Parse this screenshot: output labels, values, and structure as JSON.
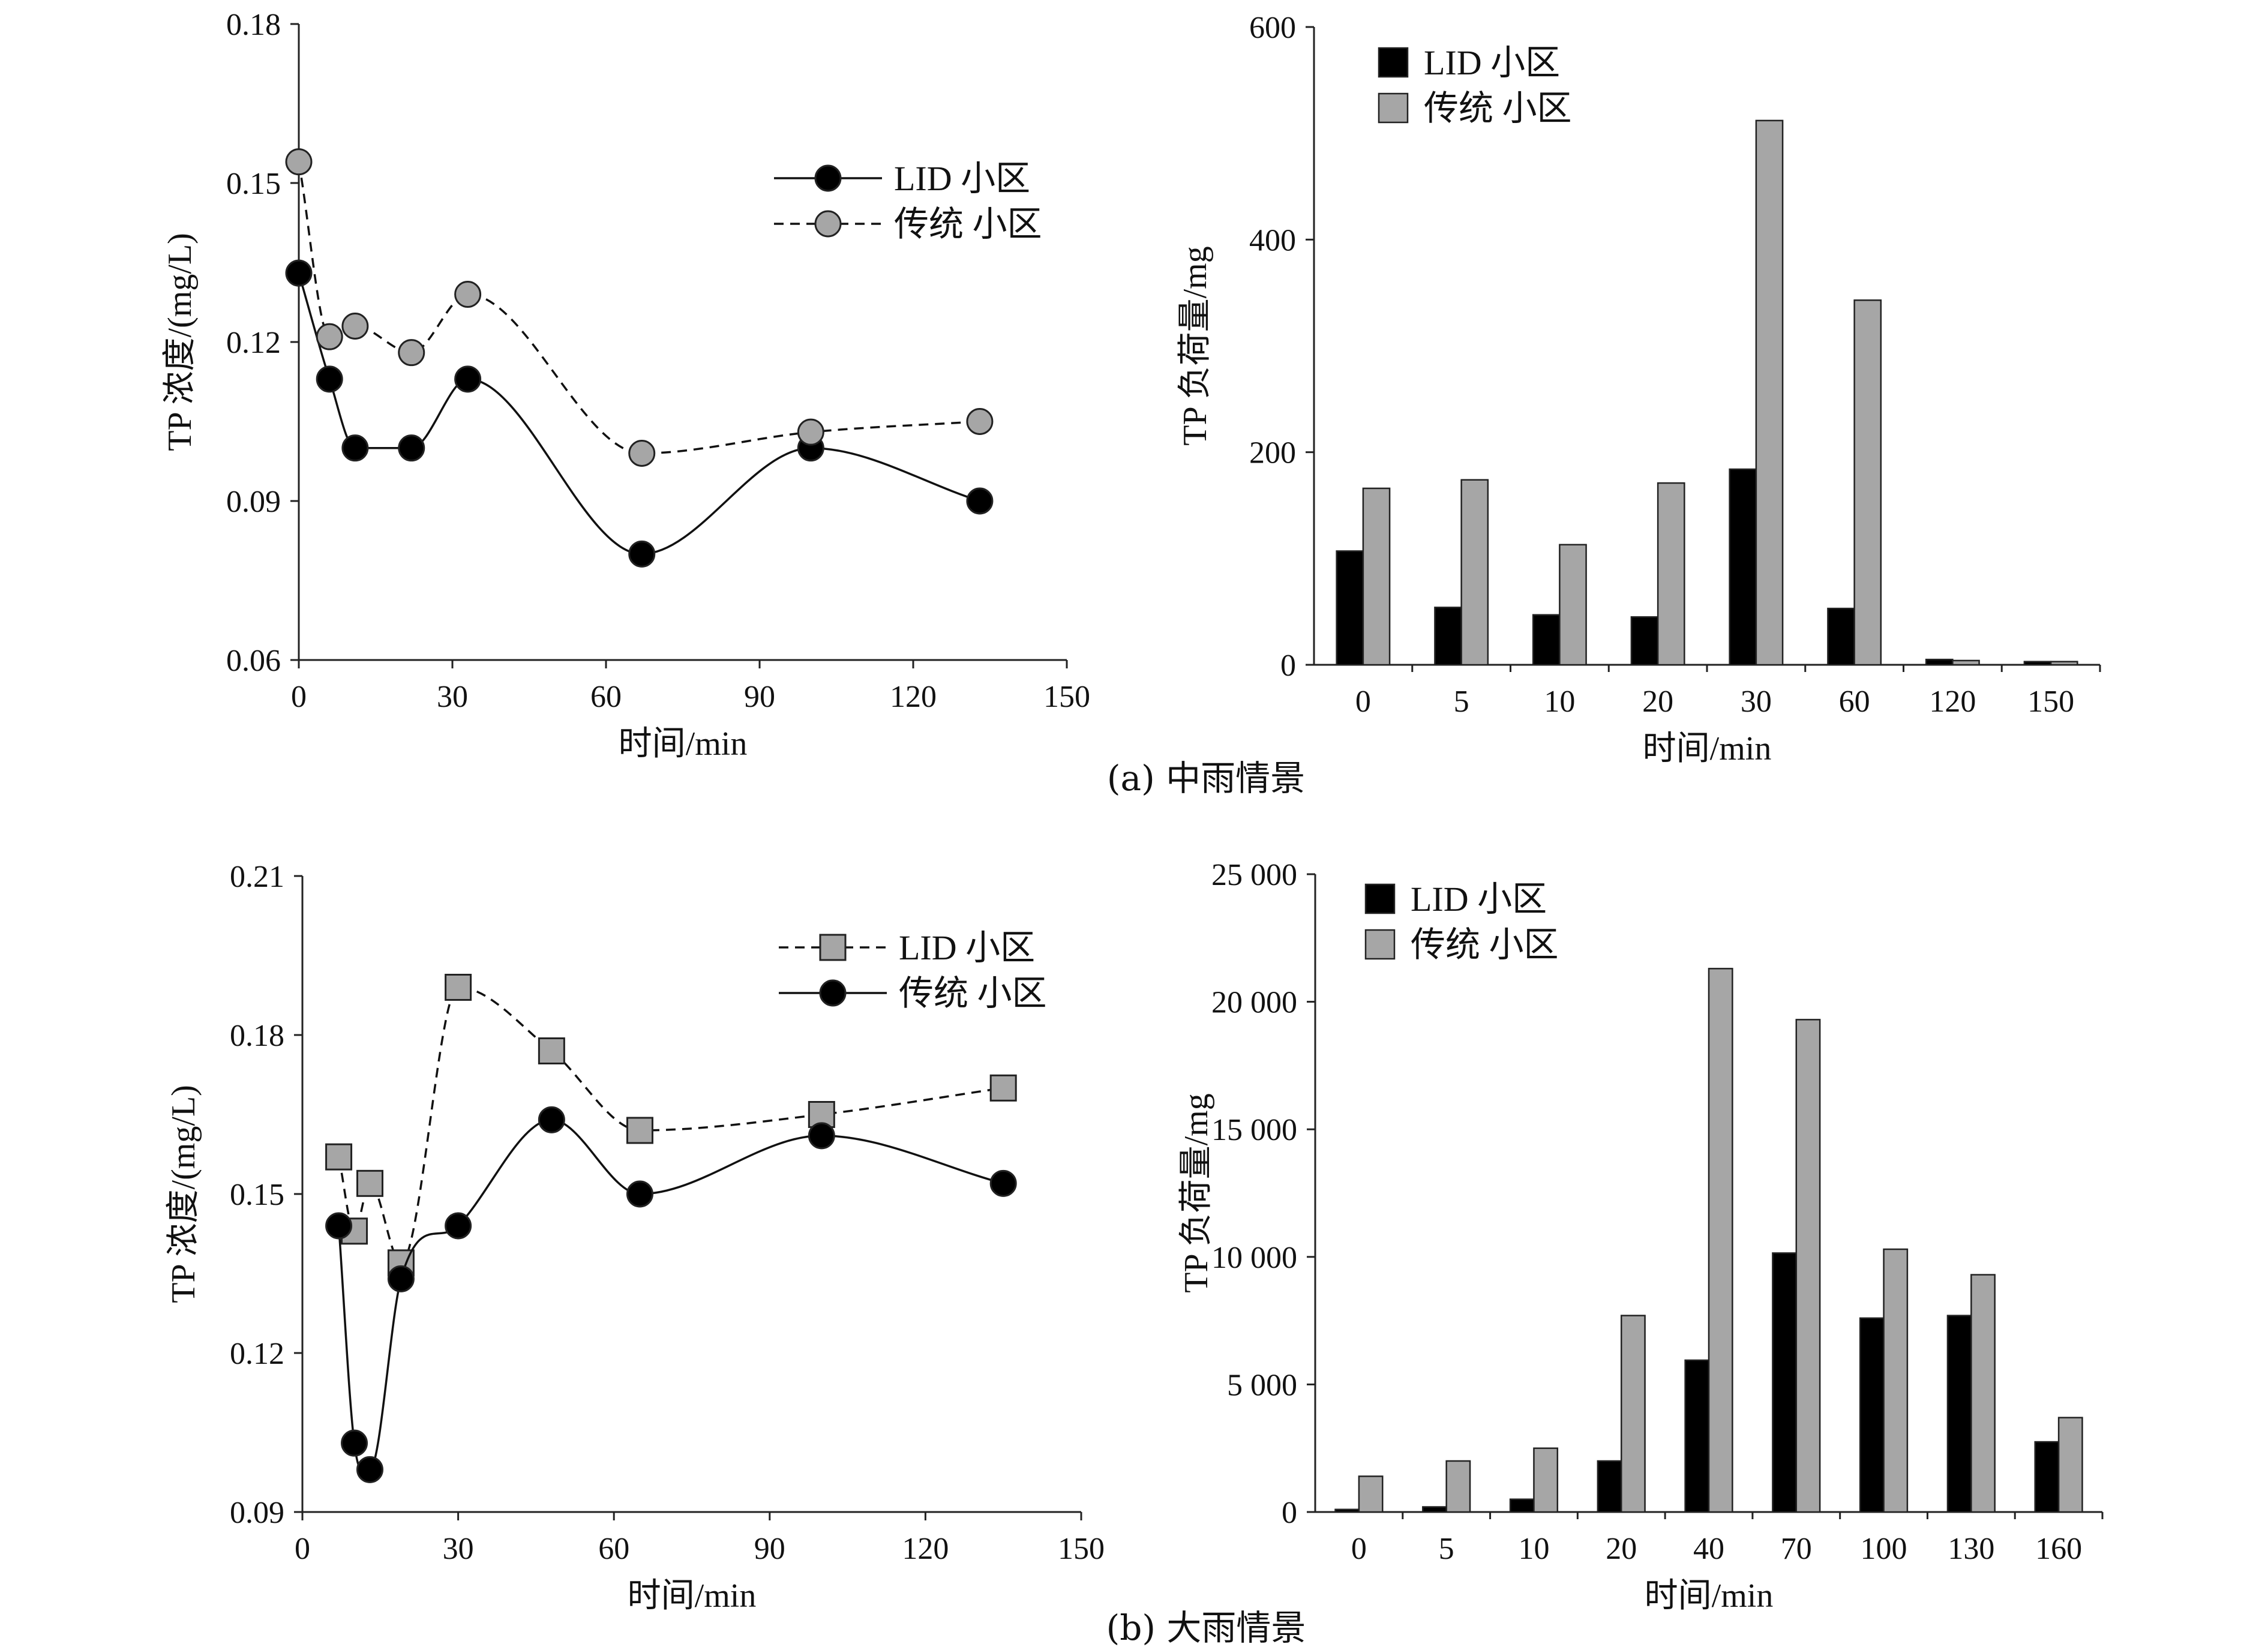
{
  "captions": {
    "a": "(a) 中雨情景",
    "b": "(b) 大雨情景"
  },
  "colors": {
    "lid": "#000000",
    "traditional": "#a6a6a6",
    "axis": "#222222"
  },
  "chart_data": [
    {
      "id": "a-line",
      "type": "line",
      "xlabel": "时间/min",
      "ylabel": "TP 浓度/(mg/L)",
      "xlim": [
        0,
        150
      ],
      "ylim": [
        0.06,
        0.18
      ],
      "xticks": [
        "0",
        "30",
        "60",
        "90",
        "120",
        "150"
      ],
      "yticks": [
        "0.06",
        "0.09",
        "0.12",
        "0.15",
        "0.18"
      ],
      "legend_position": "top-right",
      "grid": false,
      "series": [
        {
          "name": "LID 小区",
          "style": "solid",
          "marker": "circle",
          "fill": "#000000",
          "x": [
            0,
            6,
            11,
            22,
            33,
            67,
            100,
            133
          ],
          "y": [
            0.133,
            0.113,
            0.1,
            0.1,
            0.113,
            0.08,
            0.1,
            0.09
          ]
        },
        {
          "name": "传统 小区",
          "style": "dashed",
          "marker": "circle",
          "fill": "#a6a6a6",
          "x": [
            0,
            6,
            11,
            22,
            33,
            67,
            100,
            133
          ],
          "y": [
            0.154,
            0.121,
            0.123,
            0.118,
            0.129,
            0.099,
            0.103,
            0.105
          ]
        }
      ]
    },
    {
      "id": "a-bar",
      "type": "bar",
      "xlabel": "时间/min",
      "ylabel": "TP 负荷量/mg",
      "ylim": [
        0,
        600
      ],
      "yticks": [
        "0",
        "200",
        "400",
        "600"
      ],
      "categories": [
        "0",
        "5",
        "10",
        "20",
        "30",
        "60",
        "120",
        "150"
      ],
      "legend_position": "top-left",
      "grid": false,
      "series": [
        {
          "name": "LID 小区",
          "fill": "#000000",
          "values": [
            107,
            54,
            47,
            45,
            184,
            53,
            5,
            3
          ]
        },
        {
          "name": "传统 小区",
          "fill": "#a6a6a6",
          "values": [
            166,
            174,
            113,
            171,
            512,
            343,
            4,
            3
          ]
        }
      ]
    },
    {
      "id": "b-line",
      "type": "line",
      "xlabel": "时间/min",
      "ylabel": "TP 浓度/(mg/L)",
      "xlim": [
        0,
        150
      ],
      "ylim": [
        0.09,
        0.21
      ],
      "xticks": [
        "0",
        "30",
        "60",
        "90",
        "120",
        "150"
      ],
      "yticks": [
        "0.09",
        "0.12",
        "0.15",
        "0.18",
        "0.21"
      ],
      "legend_position": "top-right",
      "grid": false,
      "series": [
        {
          "name": "LID 小区",
          "style": "dashed",
          "marker": "square",
          "fill": "#a6a6a6",
          "x": [
            7,
            10,
            13,
            19,
            30,
            48,
            65,
            100,
            135
          ],
          "y": [
            0.157,
            0.143,
            0.152,
            0.137,
            0.189,
            0.177,
            0.162,
            0.165,
            0.17
          ]
        },
        {
          "name": "传统 小区",
          "style": "solid",
          "marker": "circle",
          "fill": "#000000",
          "x": [
            7,
            10,
            13,
            19,
            30,
            48,
            65,
            100,
            135
          ],
          "y": [
            0.144,
            0.103,
            0.098,
            0.134,
            0.144,
            0.164,
            0.15,
            0.161,
            0.152
          ]
        }
      ]
    },
    {
      "id": "b-bar",
      "type": "bar",
      "xlabel": "时间/min",
      "ylabel": "TP 负荷量/mg",
      "ylim": [
        0,
        25000
      ],
      "yticks": [
        "0",
        "5 000",
        "10 000",
        "15 000",
        "20 000",
        "25 000"
      ],
      "categories": [
        "0",
        "5",
        "10",
        "20",
        "40",
        "70",
        "100",
        "130",
        "160"
      ],
      "legend_position": "top-left",
      "grid": false,
      "series": [
        {
          "name": "LID 小区",
          "fill": "#000000",
          "values": [
            100,
            200,
            500,
            2000,
            5950,
            10150,
            7600,
            7700,
            2750
          ]
        },
        {
          "name": "传统 小区",
          "fill": "#a6a6a6",
          "values": [
            1400,
            2000,
            2500,
            7700,
            21300,
            19300,
            10300,
            9300,
            3700
          ]
        }
      ]
    }
  ]
}
